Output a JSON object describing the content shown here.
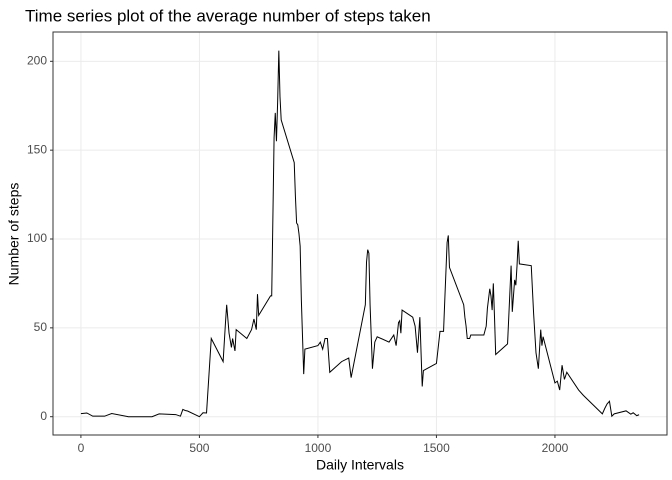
{
  "chart_data": {
    "type": "line",
    "title": "Time series plot of the average number of steps taken",
    "x_label": "Daily Intervals",
    "y_label": "Number of steps",
    "x": [
      0,
      25,
      50,
      100,
      130,
      200,
      300,
      330,
      400,
      420,
      430,
      440,
      450,
      500,
      515,
      530,
      550,
      600,
      610,
      615,
      625,
      635,
      640,
      650,
      655,
      700,
      720,
      730,
      740,
      745,
      750,
      800,
      805,
      815,
      820,
      825,
      830,
      835,
      840,
      845,
      900,
      905,
      910,
      915,
      920,
      925,
      930,
      935,
      940,
      945,
      1000,
      1010,
      1020,
      1030,
      1040,
      1050,
      1100,
      1130,
      1140,
      1200,
      1205,
      1210,
      1215,
      1220,
      1230,
      1240,
      1250,
      1300,
      1320,
      1330,
      1340,
      1345,
      1350,
      1355,
      1400,
      1410,
      1420,
      1430,
      1440,
      1445,
      1500,
      1515,
      1530,
      1535,
      1545,
      1550,
      1555,
      1615,
      1620,
      1625,
      1630,
      1640,
      1645,
      1700,
      1710,
      1715,
      1725,
      1730,
      1735,
      1740,
      1745,
      1750,
      1800,
      1815,
      1820,
      1825,
      1830,
      1835,
      1840,
      1845,
      1850,
      1900,
      1910,
      1920,
      1930,
      1940,
      1945,
      1950,
      2000,
      2010,
      2020,
      2030,
      2040,
      2050,
      2100,
      2120,
      2200,
      2210,
      2220,
      2230,
      2240,
      2250,
      2300,
      2320,
      2330,
      2345,
      2355
    ],
    "series": [
      {
        "name": "steps",
        "color": "#000000",
        "values": [
          1.7,
          2.1,
          0.3,
          0.3,
          1.8,
          0,
          0,
          1.6,
          1.2,
          0.3,
          4.1,
          3.5,
          3.2,
          0,
          2.2,
          2.1,
          44,
          31,
          53,
          63,
          47,
          39,
          44,
          37,
          49,
          44,
          49,
          55,
          49,
          69,
          57,
          68,
          68,
          157,
          171,
          155,
          177,
          206,
          180,
          167,
          143,
          124,
          109,
          108,
          103,
          96,
          66,
          45,
          24,
          38,
          40,
          42,
          38,
          44,
          44,
          25,
          31,
          33,
          22,
          63,
          87,
          94,
          92,
          63,
          27,
          42,
          45,
          42,
          46,
          40,
          53,
          54,
          47,
          60,
          56,
          51,
          36,
          56,
          17,
          26,
          30,
          48,
          48,
          65,
          98,
          102,
          84,
          63,
          56,
          51,
          44,
          44,
          46,
          46,
          51,
          61,
          72,
          68,
          60,
          75,
          56,
          35,
          41,
          85,
          59,
          68,
          77,
          74,
          85,
          99,
          86,
          85,
          58,
          36,
          27,
          49,
          40,
          45,
          19,
          20,
          15,
          29,
          21,
          25,
          15,
          12,
          1.6,
          4.6,
          7.2,
          8.7,
          0.3,
          1.6,
          3.3,
          1.4,
          2.2,
          0.6,
          1.1
        ]
      }
    ],
    "xlim": [
      -117.75,
      2472.75
    ],
    "ylim": [
      -10.3,
      216.5
    ],
    "xticks": [
      0,
      500,
      1000,
      1500,
      2000
    ],
    "yticks": [
      0,
      50,
      100,
      150,
      200
    ],
    "grid": true
  }
}
